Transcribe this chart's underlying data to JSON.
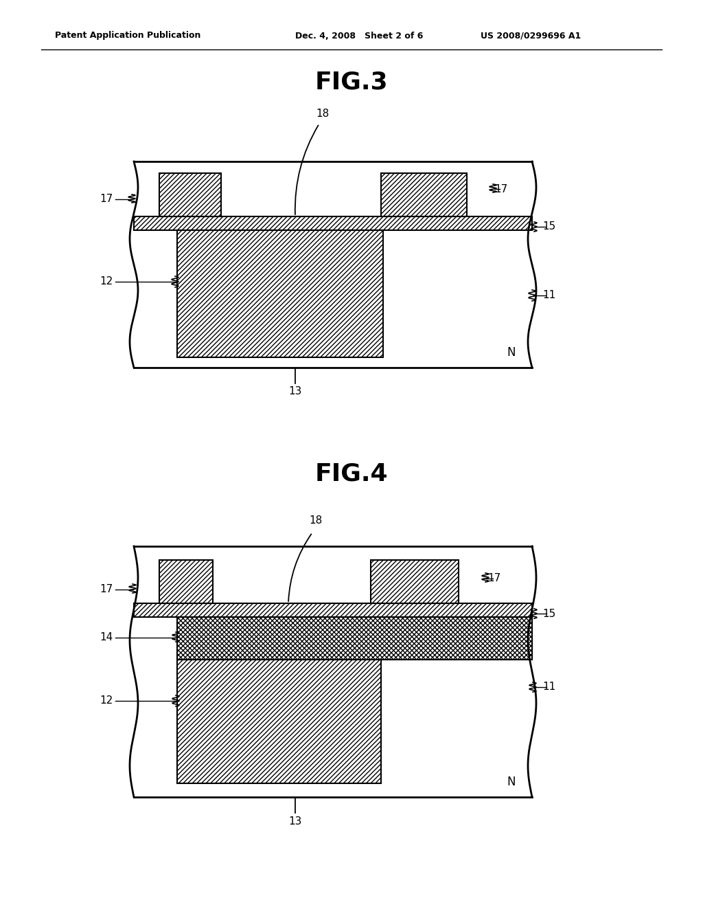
{
  "bg_color": "#ffffff",
  "header_left": "Patent Application Publication",
  "header_mid": "Dec. 4, 2008   Sheet 2 of 6",
  "header_right": "US 2008/0299696 A1",
  "fig3_title": "FIG.3",
  "fig4_title": "FIG.4"
}
